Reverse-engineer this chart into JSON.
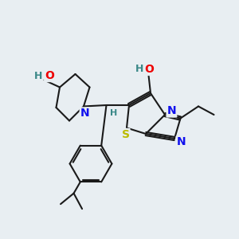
{
  "background_color": "#e8eef2",
  "bond_color": "#1a1a1a",
  "bond_width": 1.5,
  "atoms": {
    "colors": {
      "C": "#1a1a1a",
      "N": "#1010ee",
      "O": "#ee0000",
      "S": "#bbbb00",
      "H": "#3a8888"
    }
  },
  "figsize": [
    3.0,
    3.0
  ],
  "dpi": 100
}
